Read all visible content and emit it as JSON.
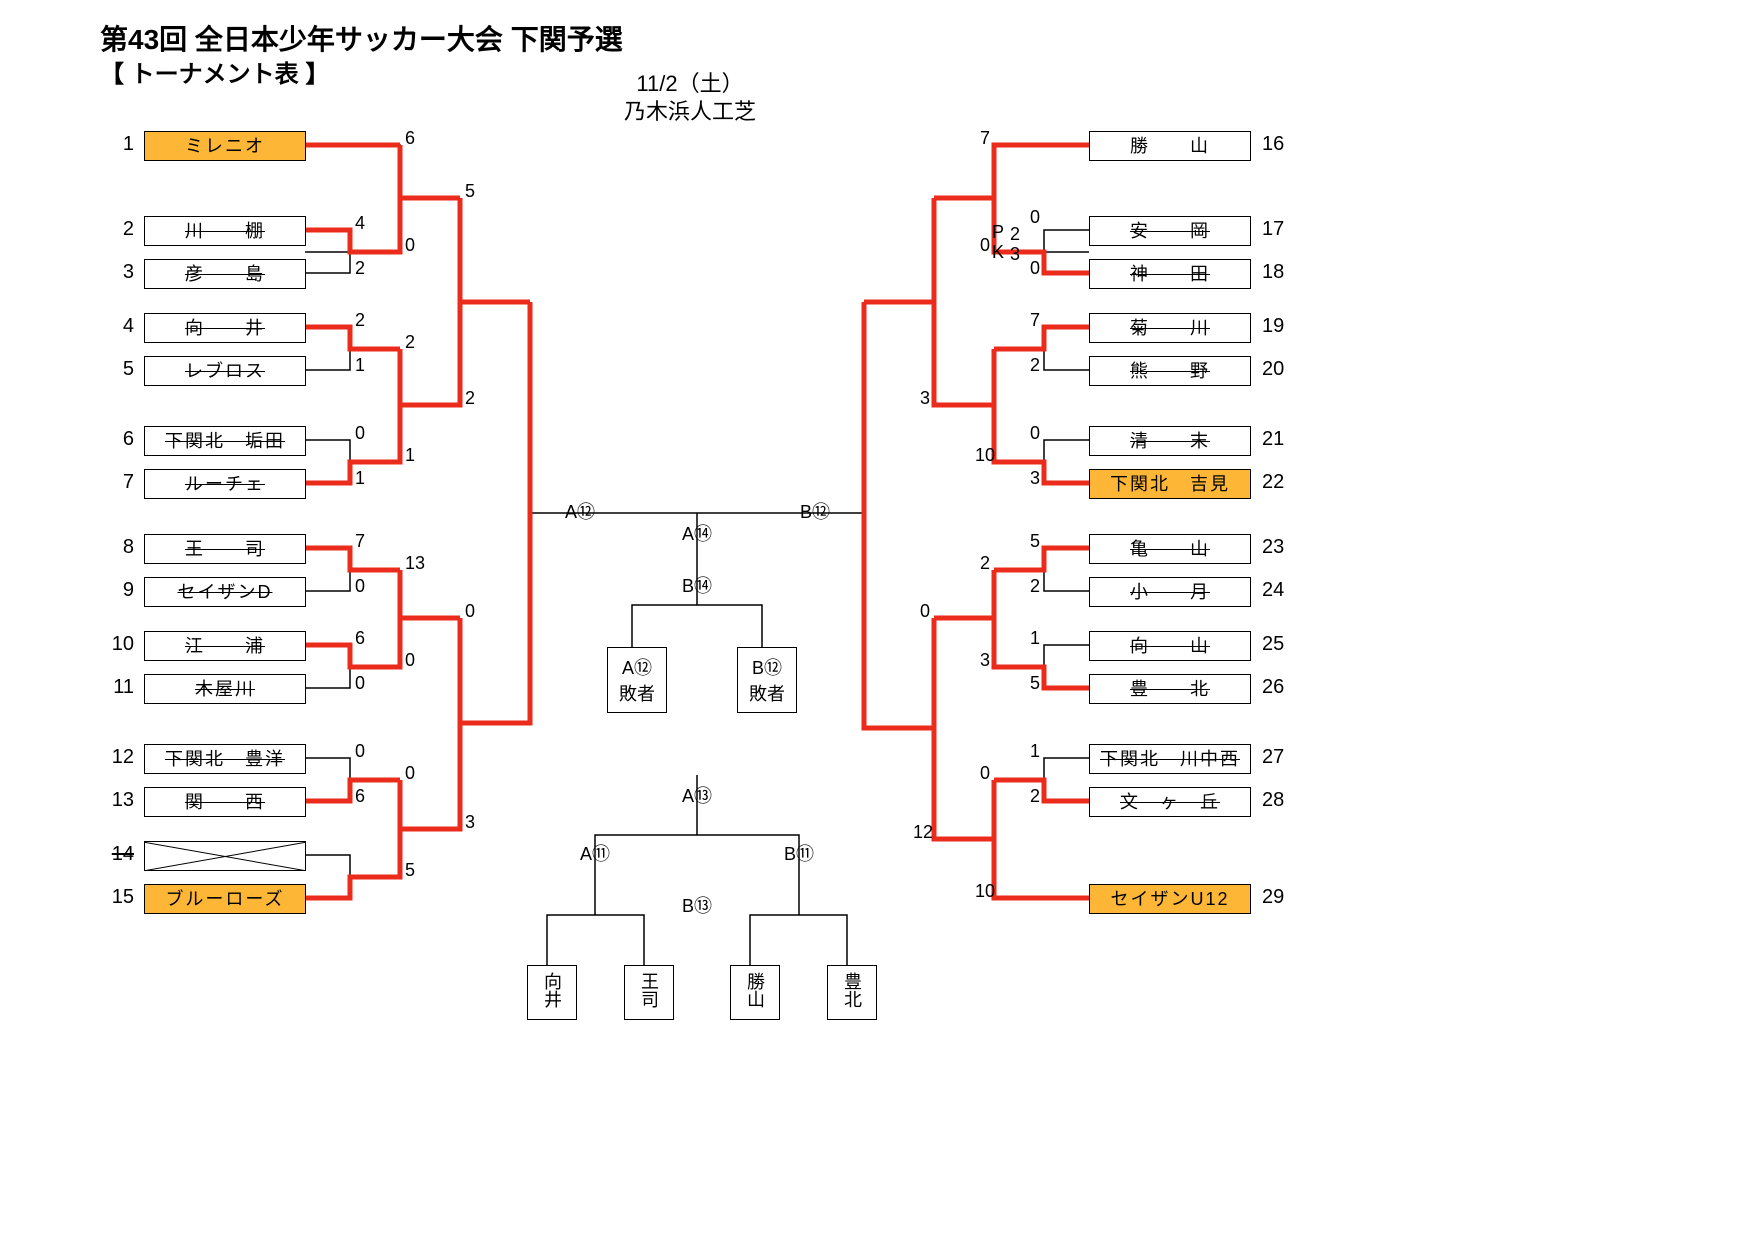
{
  "colors": {
    "highlight": "#FDB636",
    "winner_line": "#EB2B1B",
    "line": "#000000",
    "bg": "#ffffff"
  },
  "header": {
    "title": "第43回 全日本少年サッカー大会  下関予選",
    "subtitle": "【  トーナメント表  】",
    "date": "11/2（土）",
    "venue": "乃木浜人工芝"
  },
  "left_teams": [
    {
      "seed": "1",
      "name": "ミレニオ",
      "hl": true
    },
    {
      "seed": "2",
      "name": "川　　棚",
      "struck": true
    },
    {
      "seed": "3",
      "name": "彦　　島",
      "struck": true
    },
    {
      "seed": "4",
      "name": "向　　井",
      "struck": true
    },
    {
      "seed": "5",
      "name": "レブロス",
      "struck": true
    },
    {
      "seed": "6",
      "name": "下関北　垢田",
      "struck": true
    },
    {
      "seed": "7",
      "name": "ルーチェ",
      "struck": true
    },
    {
      "seed": "8",
      "name": "王　　司",
      "struck": true
    },
    {
      "seed": "9",
      "name": "セイザンD",
      "struck": true
    },
    {
      "seed": "10",
      "name": "江　　浦",
      "struck": true
    },
    {
      "seed": "11",
      "name": "木屋川",
      "struck": true
    },
    {
      "seed": "12",
      "name": "下関北　豊洋",
      "struck": true
    },
    {
      "seed": "13",
      "name": "関　　西",
      "struck": true
    },
    {
      "seed": "14",
      "name": "",
      "crossed": true,
      "seed_struck": true
    },
    {
      "seed": "15",
      "name": "ブルーローズ",
      "hl": true
    }
  ],
  "right_teams": [
    {
      "seed": "16",
      "name": "勝　　山"
    },
    {
      "seed": "17",
      "name": "安　　岡",
      "struck": true
    },
    {
      "seed": "18",
      "name": "神　　田",
      "struck": true
    },
    {
      "seed": "19",
      "name": "菊　　川",
      "struck": true
    },
    {
      "seed": "20",
      "name": "熊　　野",
      "struck": true
    },
    {
      "seed": "21",
      "name": "清　　末",
      "struck": true
    },
    {
      "seed": "22",
      "name": "下関北　吉見",
      "hl": true
    },
    {
      "seed": "23",
      "name": "亀　　山",
      "struck": true
    },
    {
      "seed": "24",
      "name": "小　　月",
      "struck": true
    },
    {
      "seed": "25",
      "name": "向　　山",
      "struck": true
    },
    {
      "seed": "26",
      "name": "豊　　北",
      "struck": true
    },
    {
      "seed": "27",
      "name": "下関北　川中西",
      "struck": true
    },
    {
      "seed": "28",
      "name": "文　ヶ　丘",
      "struck": true
    },
    {
      "seed": "29",
      "name": "セイザンU12",
      "hl": true
    }
  ],
  "center": {
    "final_A": "A⑫",
    "final_B": "B⑫",
    "semi_top": "A⑭",
    "semi_bot": "B⑭",
    "loser_A": "A⑫\n敗者",
    "loser_B": "B⑫\n敗者",
    "cons_top": "A⑬",
    "cons_A": "A⑪",
    "cons_B": "B⑪",
    "cons_bot": "B⑬",
    "seeds": [
      "向井",
      "王司",
      "勝山",
      "豊北"
    ]
  },
  "scores_left": {
    "r1_1a": "6",
    "r1_2_top": "4",
    "r1_2_bot": "2",
    "r1_2b": "0",
    "r2_top_a": "5",
    "r2_bot_a": "2",
    "r1_4_top": "2",
    "r1_4_bot": "1",
    "r1_5": "2",
    "r1_6_top": "0",
    "r1_6_bot": "1",
    "r1_7": "1",
    "r1_8_top": "7",
    "r1_8_bot": "0",
    "r1_9": "13",
    "r1_10_top": "6",
    "r1_10_bot": "0",
    "r1_11": "0",
    "r2_mid_top": "0",
    "r2_mid_bot": "3",
    "r1_12_top": "0",
    "r1_12_bot": "6",
    "r1_13": "0",
    "r1_15": "5"
  },
  "scores_right": {
    "r1_16": "7",
    "r2_top_a": "0",
    "r1_17_top": "0",
    "r1_17_bot": "0",
    "r1_18_top": "2",
    "r1_18_bot": "3",
    "pk_top": "0",
    "pk_bot": "0",
    "r1_19_top": "7",
    "r1_19_bot": "2",
    "r2_mid_a": "3",
    "r1_21_top": "0",
    "r1_21_bot": "3",
    "r2_mid_b": "10",
    "r1_23_top": "5",
    "r1_23_bot": "2",
    "r2_bot_a": "2",
    "r1_25_top": "1",
    "r1_25_bot": "5",
    "r2_bot_b": "3",
    "r3_top": "0",
    "r3_bot": "12",
    "r1_27_top": "1",
    "r1_27_bot": "2",
    "r2_last_a": "0",
    "r2_last_b": "10"
  },
  "notes": {
    "pk": "P\nK"
  }
}
